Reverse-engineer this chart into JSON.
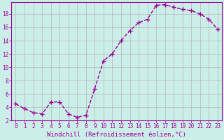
{
  "x": [
    0,
    1,
    2,
    3,
    4,
    5,
    6,
    7,
    8,
    9,
    10,
    11,
    12,
    13,
    14,
    15,
    16,
    17,
    18,
    19,
    20,
    21,
    22,
    23
  ],
  "y": [
    4.5,
    3.8,
    3.2,
    3.0,
    4.8,
    4.8,
    3.0,
    2.5,
    2.8,
    6.8,
    11.0,
    12.0,
    14.0,
    15.5,
    16.7,
    17.2,
    19.3,
    19.4,
    19.0,
    18.7,
    18.5,
    18.0,
    17.2,
    15.7
  ],
  "line_color": "#990099",
  "marker": "+",
  "marker_size": 4,
  "marker_lw": 1.0,
  "line_width": 1.0,
  "bg_color": "#cceee8",
  "grid_color": "#aaaaaa",
  "xlabel": "Windchill (Refroidissement éolien,°C)",
  "xlim": [
    -0.5,
    23.5
  ],
  "ylim": [
    2,
    19.8
  ],
  "yticks": [
    2,
    4,
    6,
    8,
    10,
    12,
    14,
    16,
    18
  ],
  "xticks": [
    0,
    1,
    2,
    3,
    4,
    5,
    6,
    7,
    8,
    9,
    10,
    11,
    12,
    13,
    14,
    15,
    16,
    17,
    18,
    19,
    20,
    21,
    22,
    23
  ],
  "tick_color": "#990099",
  "label_color": "#990099",
  "tick_fontsize": 5.5,
  "xlabel_fontsize": 6.5
}
